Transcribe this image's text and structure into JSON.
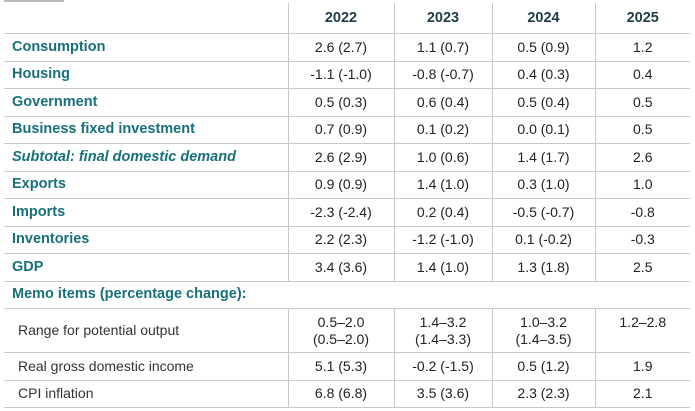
{
  "header": {
    "years": [
      "2022",
      "2023",
      "2024",
      "2025"
    ]
  },
  "rows": [
    {
      "label": "Consumption",
      "values": [
        "2.6 (2.7)",
        "1.1 (0.7)",
        "0.5 (0.9)",
        "1.2"
      ]
    },
    {
      "label": "Housing",
      "values": [
        "-1.1 (-1.0)",
        "-0.8 (-0.7)",
        "0.4 (0.3)",
        "0.4"
      ]
    },
    {
      "label": "Government",
      "values": [
        "0.5 (0.3)",
        "0.6 (0.4)",
        "0.5 (0.4)",
        "0.5"
      ]
    },
    {
      "label": "Business fixed investment",
      "values": [
        "0.7 (0.9)",
        "0.1 (0.2)",
        "0.0 (0.1)",
        "0.5"
      ]
    },
    {
      "label": "Subtotal: final domestic demand",
      "values": [
        "2.6 (2.9)",
        "1.0 (0.6)",
        "1.4 (1.7)",
        "2.6"
      ]
    },
    {
      "label": "Exports",
      "values": [
        "0.9 (0.9)",
        "1.4 (1.0)",
        "0.3 (1.0)",
        "1.0"
      ]
    },
    {
      "label": "Imports",
      "values": [
        "-2.3 (-2.4)",
        "0.2 (0.4)",
        "-0.5 (-0.7)",
        "-0.8"
      ]
    },
    {
      "label": "Inventories",
      "values": [
        "2.2 (2.3)",
        "-1.2 (-1.0)",
        "0.1 (-0.2)",
        "-0.3"
      ]
    },
    {
      "label": "GDP",
      "values": [
        "3.4 (3.6)",
        "1.4 (1.0)",
        "1.3 (1.8)",
        "2.5"
      ]
    }
  ],
  "memo": {
    "title": "Memo items (percentage change):",
    "range_row": {
      "label": "Range for potential output",
      "values": [
        {
          "line1": "0.5–2.0",
          "line2": "(0.5–2.0)"
        },
        {
          "line1": "1.4–3.2",
          "line2": "(1.4–3.3)"
        },
        {
          "line1": "1.0–3.2",
          "line2": "(1.4–3.5)"
        },
        {
          "line1": "1.2–2.8",
          "line2": ""
        }
      ]
    },
    "rows": [
      {
        "label": "Real gross domestic income",
        "values": [
          "5.1 (5.3)",
          "-0.2 (-1.5)",
          "0.5 (1.2)",
          "1.9"
        ]
      },
      {
        "label": "CPI inflation",
        "values": [
          "6.8 (6.8)",
          "3.5 (3.6)",
          "2.3 (2.3)",
          "2.1"
        ]
      }
    ]
  }
}
